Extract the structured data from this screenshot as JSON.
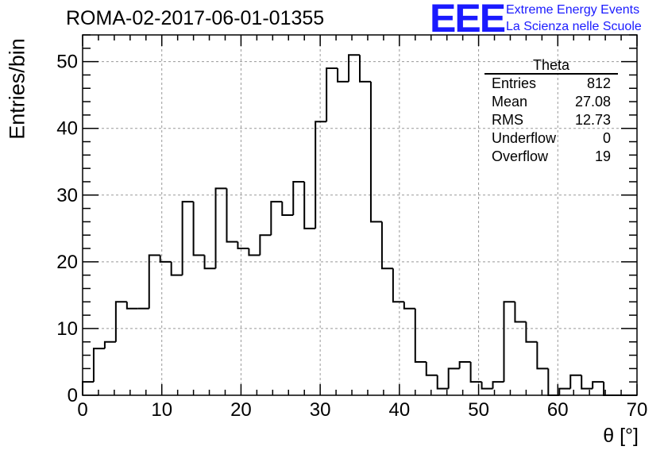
{
  "header": {
    "run_title": "ROMA-02-2017-06-01-01355",
    "logo_text": "EEE",
    "logo_line1": "Extreme Energy Events",
    "logo_line2": "La Scienza nelle Scuole",
    "logo_color": "#1a1aff"
  },
  "stats": {
    "title": "Theta",
    "rows": [
      {
        "label": "Entries",
        "value": "812"
      },
      {
        "label": "Mean",
        "value": "27.08"
      },
      {
        "label": "RMS",
        "value": "12.73"
      },
      {
        "label": "Underflow",
        "value": "0"
      },
      {
        "label": "Overflow",
        "value": "19"
      }
    ]
  },
  "chart_data": {
    "type": "bar",
    "style": "step-histogram",
    "xlabel": "θ [°]",
    "ylabel": "Entries/bin",
    "xlim": [
      0,
      70
    ],
    "ylim": [
      0,
      54
    ],
    "bin_width": 1.4,
    "x_ticks": [
      0,
      10,
      20,
      30,
      40,
      50,
      60,
      70
    ],
    "y_ticks": [
      0,
      10,
      20,
      30,
      40,
      50
    ],
    "grid": true,
    "grid_style": "dashed",
    "line_color": "#000000",
    "values": [
      2,
      7,
      8,
      14,
      13,
      13,
      21,
      20,
      18,
      29,
      21,
      19,
      31,
      23,
      22,
      21,
      24,
      29,
      27,
      32,
      25,
      41,
      49,
      47,
      51,
      47,
      26,
      19,
      14,
      13,
      5,
      3,
      1,
      4,
      5,
      2,
      1,
      2,
      14,
      11,
      8,
      4,
      0,
      1,
      3,
      1,
      2,
      0,
      0,
      0
    ]
  }
}
